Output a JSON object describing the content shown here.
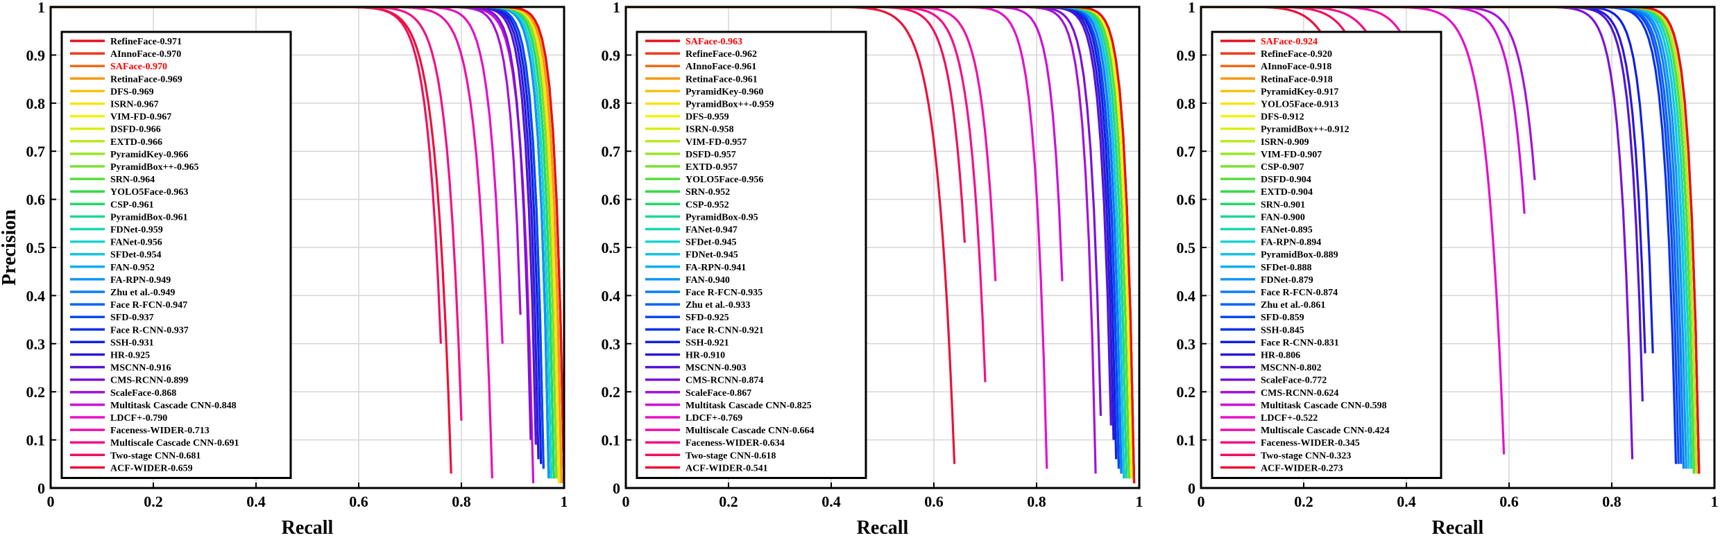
{
  "chart_data": [
    {
      "type": "line",
      "title": "",
      "xlabel": "Recall",
      "ylabel": "Precision",
      "xlim": [
        0,
        1
      ],
      "ylim": [
        0,
        1
      ],
      "xticks": [
        "0",
        "0.2",
        "0.4",
        "0.6",
        "0.8",
        "1"
      ],
      "yticks": [
        "0",
        "0.1",
        "0.2",
        "0.3",
        "0.4",
        "0.5",
        "0.6",
        "0.7",
        "0.8",
        "0.9",
        "1"
      ],
      "grid": true,
      "legend_position": "upper-left",
      "series": [
        {
          "name": "RefineFace-0.971",
          "color": "#e8101e",
          "endRecall": 1.0,
          "endPrecision": 0.01,
          "ap": 0.971
        },
        {
          "name": "AInnoFace-0.970",
          "color": "#ec3a1c",
          "endRecall": 1.0,
          "endPrecision": 0.01,
          "ap": 0.97
        },
        {
          "name": "SAFace-0.970",
          "color": "#f06a18",
          "endRecall": 1.0,
          "endPrecision": 0.01,
          "ap": 0.97,
          "highlight": "#ff0000"
        },
        {
          "name": "RetinaFace-0.969",
          "color": "#f49a14",
          "endRecall": 0.995,
          "endPrecision": 0.01,
          "ap": 0.969
        },
        {
          "name": "DFS-0.969",
          "color": "#f8c210",
          "endRecall": 0.995,
          "endPrecision": 0.01,
          "ap": 0.969
        },
        {
          "name": "ISRN-0.967",
          "color": "#fce40c",
          "endRecall": 0.99,
          "endPrecision": 0.01,
          "ap": 0.967
        },
        {
          "name": "VIM-FD-0.967",
          "color": "#f2f20a",
          "endRecall": 0.99,
          "endPrecision": 0.01,
          "ap": 0.967
        },
        {
          "name": "DSFD-0.966",
          "color": "#d8ee12",
          "endRecall": 0.99,
          "endPrecision": 0.01,
          "ap": 0.966
        },
        {
          "name": "EXTD-0.966",
          "color": "#b8ea1c",
          "endRecall": 0.99,
          "endPrecision": 0.02,
          "ap": 0.966
        },
        {
          "name": "PyramidKey-0.966",
          "color": "#98e626",
          "endRecall": 0.99,
          "endPrecision": 0.02,
          "ap": 0.966
        },
        {
          "name": "PyramidBox++-0.965",
          "color": "#78e230",
          "endRecall": 0.985,
          "endPrecision": 0.02,
          "ap": 0.965
        },
        {
          "name": "SRN-0.964",
          "color": "#56de3a",
          "endRecall": 0.985,
          "endPrecision": 0.02,
          "ap": 0.964
        },
        {
          "name": "YOLO5Face-0.963",
          "color": "#34da48",
          "endRecall": 0.985,
          "endPrecision": 0.02,
          "ap": 0.963
        },
        {
          "name": "CSP-0.961",
          "color": "#22d86a",
          "endRecall": 0.98,
          "endPrecision": 0.02,
          "ap": 0.961
        },
        {
          "name": "PyramidBox-0.961",
          "color": "#1cd88e",
          "endRecall": 0.98,
          "endPrecision": 0.02,
          "ap": 0.961
        },
        {
          "name": "FDNet-0.959",
          "color": "#18d8b2",
          "endRecall": 0.98,
          "endPrecision": 0.02,
          "ap": 0.959
        },
        {
          "name": "FANet-0.956",
          "color": "#14d6d0",
          "endRecall": 0.975,
          "endPrecision": 0.02,
          "ap": 0.956
        },
        {
          "name": "SFDet-0.954",
          "color": "#12c4e4",
          "endRecall": 0.975,
          "endPrecision": 0.02,
          "ap": 0.954
        },
        {
          "name": "FAN-0.952",
          "color": "#10aef0",
          "endRecall": 0.975,
          "endPrecision": 0.02,
          "ap": 0.952
        },
        {
          "name": "FA-RPN-0.949",
          "color": "#0e96f6",
          "endRecall": 0.97,
          "endPrecision": 0.02,
          "ap": 0.949
        },
        {
          "name": "Zhu et al.-0.949",
          "color": "#0c7cf8",
          "endRecall": 0.97,
          "endPrecision": 0.02,
          "ap": 0.949
        },
        {
          "name": "Face R-FCN-0.947",
          "color": "#0a62f8",
          "endRecall": 0.97,
          "endPrecision": 0.03,
          "ap": 0.947
        },
        {
          "name": "SFD-0.937",
          "color": "#0848f4",
          "endRecall": 0.96,
          "endPrecision": 0.04,
          "ap": 0.937
        },
        {
          "name": "Face R-CNN-0.937",
          "color": "#0830ec",
          "endRecall": 0.96,
          "endPrecision": 0.04,
          "ap": 0.937
        },
        {
          "name": "SSH-0.931",
          "color": "#1020e0",
          "endRecall": 0.955,
          "endPrecision": 0.05,
          "ap": 0.931
        },
        {
          "name": "HR-0.925",
          "color": "#2a18d8",
          "endRecall": 0.95,
          "endPrecision": 0.06,
          "ap": 0.925
        },
        {
          "name": "MSCNN-0.916",
          "color": "#5214d6",
          "endRecall": 0.945,
          "endPrecision": 0.09,
          "ap": 0.916
        },
        {
          "name": "CMS-RCNN-0.899",
          "color": "#7a12d6",
          "endRecall": 0.935,
          "endPrecision": 0.1,
          "ap": 0.899
        },
        {
          "name": "ScaleFace-0.868",
          "color": "#a412d8",
          "endRecall": 0.915,
          "endPrecision": 0.36,
          "ap": 0.868
        },
        {
          "name": "Multitask Cascade CNN-0.848",
          "color": "#cc10d8",
          "endRecall": 0.94,
          "endPrecision": 0.01,
          "ap": 0.848
        },
        {
          "name": "LDCF+-0.790",
          "color": "#e610c8",
          "endRecall": 0.88,
          "endPrecision": 0.3,
          "ap": 0.79
        },
        {
          "name": "Faceness-WIDER-0.713",
          "color": "#f010a8",
          "endRecall": 0.86,
          "endPrecision": 0.02,
          "ap": 0.713
        },
        {
          "name": "Multiscale Cascade CNN-0.691",
          "color": "#f21088",
          "endRecall": 0.8,
          "endPrecision": 0.14,
          "ap": 0.691
        },
        {
          "name": "Two-stage CNN-0.681",
          "color": "#f0105c",
          "endRecall": 0.76,
          "endPrecision": 0.3,
          "ap": 0.681
        },
        {
          "name": "ACF-WIDER-0.659",
          "color": "#ec1038",
          "endRecall": 0.78,
          "endPrecision": 0.03,
          "ap": 0.659
        }
      ]
    },
    {
      "type": "line",
      "title": "",
      "xlabel": "Recall",
      "ylabel": "",
      "xlim": [
        0,
        1
      ],
      "ylim": [
        0,
        1
      ],
      "xticks": [
        "0",
        "0.2",
        "0.4",
        "0.6",
        "0.8",
        "1"
      ],
      "yticks": [
        "0",
        "0.1",
        "0.2",
        "0.3",
        "0.4",
        "0.5",
        "0.6",
        "0.7",
        "0.8",
        "0.9",
        "1"
      ],
      "grid": true,
      "legend_position": "upper-left",
      "series": [
        {
          "name": "SAFace-0.963",
          "color": "#e8101e",
          "endRecall": 0.99,
          "endPrecision": 0.01,
          "ap": 0.963,
          "highlight": "#ff0000"
        },
        {
          "name": "RefineFace-0.962",
          "color": "#ec3a1c",
          "endRecall": 0.99,
          "endPrecision": 0.01,
          "ap": 0.962
        },
        {
          "name": "AInnoFace-0.961",
          "color": "#f06a18",
          "endRecall": 0.99,
          "endPrecision": 0.01,
          "ap": 0.961
        },
        {
          "name": "RetinaFace-0.961",
          "color": "#f49a14",
          "endRecall": 0.99,
          "endPrecision": 0.01,
          "ap": 0.961
        },
        {
          "name": "PyramidKey-0.960",
          "color": "#f8c210",
          "endRecall": 0.99,
          "endPrecision": 0.01,
          "ap": 0.96
        },
        {
          "name": "PyramidBox++-0.959",
          "color": "#fce40c",
          "endRecall": 0.99,
          "endPrecision": 0.01,
          "ap": 0.959
        },
        {
          "name": "DFS-0.959",
          "color": "#f2f20a",
          "endRecall": 0.985,
          "endPrecision": 0.02,
          "ap": 0.959
        },
        {
          "name": "ISRN-0.958",
          "color": "#d8ee12",
          "endRecall": 0.985,
          "endPrecision": 0.02,
          "ap": 0.958
        },
        {
          "name": "VIM-FD-0.957",
          "color": "#b8ea1c",
          "endRecall": 0.985,
          "endPrecision": 0.02,
          "ap": 0.957
        },
        {
          "name": "DSFD-0.957",
          "color": "#98e626",
          "endRecall": 0.985,
          "endPrecision": 0.02,
          "ap": 0.957
        },
        {
          "name": "EXTD-0.957",
          "color": "#78e230",
          "endRecall": 0.985,
          "endPrecision": 0.02,
          "ap": 0.957
        },
        {
          "name": "YOLO5Face-0.956",
          "color": "#56de3a",
          "endRecall": 0.98,
          "endPrecision": 0.02,
          "ap": 0.956
        },
        {
          "name": "SRN-0.952",
          "color": "#34da48",
          "endRecall": 0.98,
          "endPrecision": 0.02,
          "ap": 0.952
        },
        {
          "name": "CSP-0.952",
          "color": "#22d86a",
          "endRecall": 0.98,
          "endPrecision": 0.02,
          "ap": 0.952
        },
        {
          "name": "PyramidBox-0.95",
          "color": "#1cd88e",
          "endRecall": 0.975,
          "endPrecision": 0.02,
          "ap": 0.95
        },
        {
          "name": "FANet-0.947",
          "color": "#18d8b2",
          "endRecall": 0.975,
          "endPrecision": 0.02,
          "ap": 0.947
        },
        {
          "name": "SFDet-0.945",
          "color": "#14d6d0",
          "endRecall": 0.975,
          "endPrecision": 0.02,
          "ap": 0.945
        },
        {
          "name": "FDNet-0.945",
          "color": "#12c4e4",
          "endRecall": 0.97,
          "endPrecision": 0.02,
          "ap": 0.945
        },
        {
          "name": "FA-RPN-0.941",
          "color": "#10aef0",
          "endRecall": 0.97,
          "endPrecision": 0.02,
          "ap": 0.941
        },
        {
          "name": "FAN-0.940",
          "color": "#0e96f6",
          "endRecall": 0.97,
          "endPrecision": 0.02,
          "ap": 0.94
        },
        {
          "name": "Face R-FCN-0.935",
          "color": "#0c7cf8",
          "endRecall": 0.965,
          "endPrecision": 0.03,
          "ap": 0.935
        },
        {
          "name": "Zhu et al.-0.933",
          "color": "#0a62f8",
          "endRecall": 0.965,
          "endPrecision": 0.03,
          "ap": 0.933
        },
        {
          "name": "SFD-0.925",
          "color": "#0848f4",
          "endRecall": 0.96,
          "endPrecision": 0.04,
          "ap": 0.925
        },
        {
          "name": "Face R-CNN-0.921",
          "color": "#0830ec",
          "endRecall": 0.96,
          "endPrecision": 0.05,
          "ap": 0.921
        },
        {
          "name": "SSH-0.921",
          "color": "#1020e0",
          "endRecall": 0.955,
          "endPrecision": 0.06,
          "ap": 0.921
        },
        {
          "name": "HR-0.910",
          "color": "#2a18d8",
          "endRecall": 0.95,
          "endPrecision": 0.1,
          "ap": 0.91
        },
        {
          "name": "MSCNN-0.903",
          "color": "#5214d6",
          "endRecall": 0.945,
          "endPrecision": 0.13,
          "ap": 0.903
        },
        {
          "name": "CMS-RCNN-0.874",
          "color": "#7a12d6",
          "endRecall": 0.925,
          "endPrecision": 0.15,
          "ap": 0.874
        },
        {
          "name": "ScaleFace-0.867",
          "color": "#a412d8",
          "endRecall": 0.915,
          "endPrecision": 0.03,
          "ap": 0.867
        },
        {
          "name": "Multitask Cascade CNN-0.825",
          "color": "#cc10d8",
          "endRecall": 0.85,
          "endPrecision": 0.43,
          "ap": 0.825
        },
        {
          "name": "LDCF+-0.769",
          "color": "#e610c8",
          "endRecall": 0.82,
          "endPrecision": 0.04,
          "ap": 0.769
        },
        {
          "name": "Multiscale Cascade CNN-0.664",
          "color": "#f010a8",
          "endRecall": 0.72,
          "endPrecision": 0.43,
          "ap": 0.664
        },
        {
          "name": "Faceness-WIDER-0.634",
          "color": "#f21088",
          "endRecall": 0.7,
          "endPrecision": 0.22,
          "ap": 0.634
        },
        {
          "name": "Two-stage CNN-0.618",
          "color": "#f0105c",
          "endRecall": 0.66,
          "endPrecision": 0.51,
          "ap": 0.618
        },
        {
          "name": "ACF-WIDER-0.541",
          "color": "#ec1038",
          "endRecall": 0.64,
          "endPrecision": 0.05,
          "ap": 0.541
        }
      ]
    },
    {
      "type": "line",
      "title": "",
      "xlabel": "Recall",
      "ylabel": "",
      "xlim": [
        0,
        1
      ],
      "ylim": [
        0,
        1
      ],
      "xticks": [
        "0",
        "0.2",
        "0.4",
        "0.6",
        "0.8",
        "1"
      ],
      "yticks": [
        "0",
        "0.1",
        "0.2",
        "0.3",
        "0.4",
        "0.5",
        "0.6",
        "0.7",
        "0.8",
        "0.9",
        "1"
      ],
      "grid": true,
      "legend_position": "upper-left",
      "series": [
        {
          "name": "SAFace-0.924",
          "color": "#e8101e",
          "endRecall": 0.97,
          "endPrecision": 0.03,
          "ap": 0.924,
          "highlight": "#ff0000"
        },
        {
          "name": "RefineFace-0.920",
          "color": "#ec3a1c",
          "endRecall": 0.97,
          "endPrecision": 0.03,
          "ap": 0.92
        },
        {
          "name": "AInnoFace-0.918",
          "color": "#f06a18",
          "endRecall": 0.97,
          "endPrecision": 0.03,
          "ap": 0.918
        },
        {
          "name": "RetinaFace-0.918",
          "color": "#f49a14",
          "endRecall": 0.97,
          "endPrecision": 0.03,
          "ap": 0.918
        },
        {
          "name": "PyramidKey-0.917",
          "color": "#f8c210",
          "endRecall": 0.97,
          "endPrecision": 0.03,
          "ap": 0.917
        },
        {
          "name": "YOLO5Face-0.913",
          "color": "#fce40c",
          "endRecall": 0.97,
          "endPrecision": 0.03,
          "ap": 0.913
        },
        {
          "name": "DFS-0.912",
          "color": "#f2f20a",
          "endRecall": 0.97,
          "endPrecision": 0.03,
          "ap": 0.912
        },
        {
          "name": "PyramidBox++-0.912",
          "color": "#d8ee12",
          "endRecall": 0.97,
          "endPrecision": 0.03,
          "ap": 0.912
        },
        {
          "name": "ISRN-0.909",
          "color": "#b8ea1c",
          "endRecall": 0.965,
          "endPrecision": 0.03,
          "ap": 0.909
        },
        {
          "name": "VIM-FD-0.907",
          "color": "#98e626",
          "endRecall": 0.965,
          "endPrecision": 0.03,
          "ap": 0.907
        },
        {
          "name": "CSP-0.907",
          "color": "#78e230",
          "endRecall": 0.965,
          "endPrecision": 0.03,
          "ap": 0.907
        },
        {
          "name": "DSFD-0.904",
          "color": "#56de3a",
          "endRecall": 0.96,
          "endPrecision": 0.03,
          "ap": 0.904
        },
        {
          "name": "EXTD-0.904",
          "color": "#34da48",
          "endRecall": 0.96,
          "endPrecision": 0.03,
          "ap": 0.904
        },
        {
          "name": "SRN-0.901",
          "color": "#22d86a",
          "endRecall": 0.96,
          "endPrecision": 0.04,
          "ap": 0.901
        },
        {
          "name": "FAN-0.900",
          "color": "#1cd88e",
          "endRecall": 0.96,
          "endPrecision": 0.04,
          "ap": 0.9
        },
        {
          "name": "FANet-0.895",
          "color": "#18d8b2",
          "endRecall": 0.955,
          "endPrecision": 0.04,
          "ap": 0.895
        },
        {
          "name": "FA-RPN-0.894",
          "color": "#14d6d0",
          "endRecall": 0.955,
          "endPrecision": 0.04,
          "ap": 0.894
        },
        {
          "name": "PyramidBox-0.889",
          "color": "#12c4e4",
          "endRecall": 0.95,
          "endPrecision": 0.04,
          "ap": 0.889
        },
        {
          "name": "SFDet-0.888",
          "color": "#10aef0",
          "endRecall": 0.95,
          "endPrecision": 0.04,
          "ap": 0.888
        },
        {
          "name": "FDNet-0.879",
          "color": "#0e96f6",
          "endRecall": 0.945,
          "endPrecision": 0.04,
          "ap": 0.879
        },
        {
          "name": "Face R-FCN-0.874",
          "color": "#0c7cf8",
          "endRecall": 0.94,
          "endPrecision": 0.04,
          "ap": 0.874
        },
        {
          "name": "Zhu et al.-0.861",
          "color": "#0a62f8",
          "endRecall": 0.935,
          "endPrecision": 0.05,
          "ap": 0.861
        },
        {
          "name": "SFD-0.859",
          "color": "#0848f4",
          "endRecall": 0.93,
          "endPrecision": 0.05,
          "ap": 0.859
        },
        {
          "name": "SSH-0.845",
          "color": "#0830ec",
          "endRecall": 0.925,
          "endPrecision": 0.05,
          "ap": 0.845
        },
        {
          "name": "Face R-CNN-0.831",
          "color": "#1020e0",
          "endRecall": 0.88,
          "endPrecision": 0.28,
          "ap": 0.831
        },
        {
          "name": "HR-0.806",
          "color": "#2a18d8",
          "endRecall": 0.865,
          "endPrecision": 0.28,
          "ap": 0.806
        },
        {
          "name": "MSCNN-0.802",
          "color": "#5214d6",
          "endRecall": 0.86,
          "endPrecision": 0.18,
          "ap": 0.802
        },
        {
          "name": "ScaleFace-0.772",
          "color": "#7a12d6",
          "endRecall": 0.84,
          "endPrecision": 0.06,
          "ap": 0.772
        },
        {
          "name": "CMS-RCNN-0.624",
          "color": "#a412d8",
          "endRecall": 0.65,
          "endPrecision": 0.64,
          "ap": 0.624
        },
        {
          "name": "Multitask Cascade CNN-0.598",
          "color": "#cc10d8",
          "endRecall": 0.63,
          "endPrecision": 0.57,
          "ap": 0.598
        },
        {
          "name": "LDCF+-0.522",
          "color": "#e610c8",
          "endRecall": 0.59,
          "endPrecision": 0.07,
          "ap": 0.522
        },
        {
          "name": "Multiscale Cascade CNN-0.424",
          "color": "#f010a8",
          "endRecall": 0.46,
          "endPrecision": 0.55,
          "ap": 0.424
        },
        {
          "name": "Faceness-WIDER-0.345",
          "color": "#f21088",
          "endRecall": 0.4,
          "endPrecision": 0.6,
          "ap": 0.345
        },
        {
          "name": "Two-stage CNN-0.323",
          "color": "#f0105c",
          "endRecall": 0.35,
          "endPrecision": 0.65,
          "ap": 0.323
        },
        {
          "name": "ACF-WIDER-0.273",
          "color": "#ec1038",
          "endRecall": 0.3,
          "endPrecision": 0.7,
          "ap": 0.273
        }
      ]
    }
  ]
}
